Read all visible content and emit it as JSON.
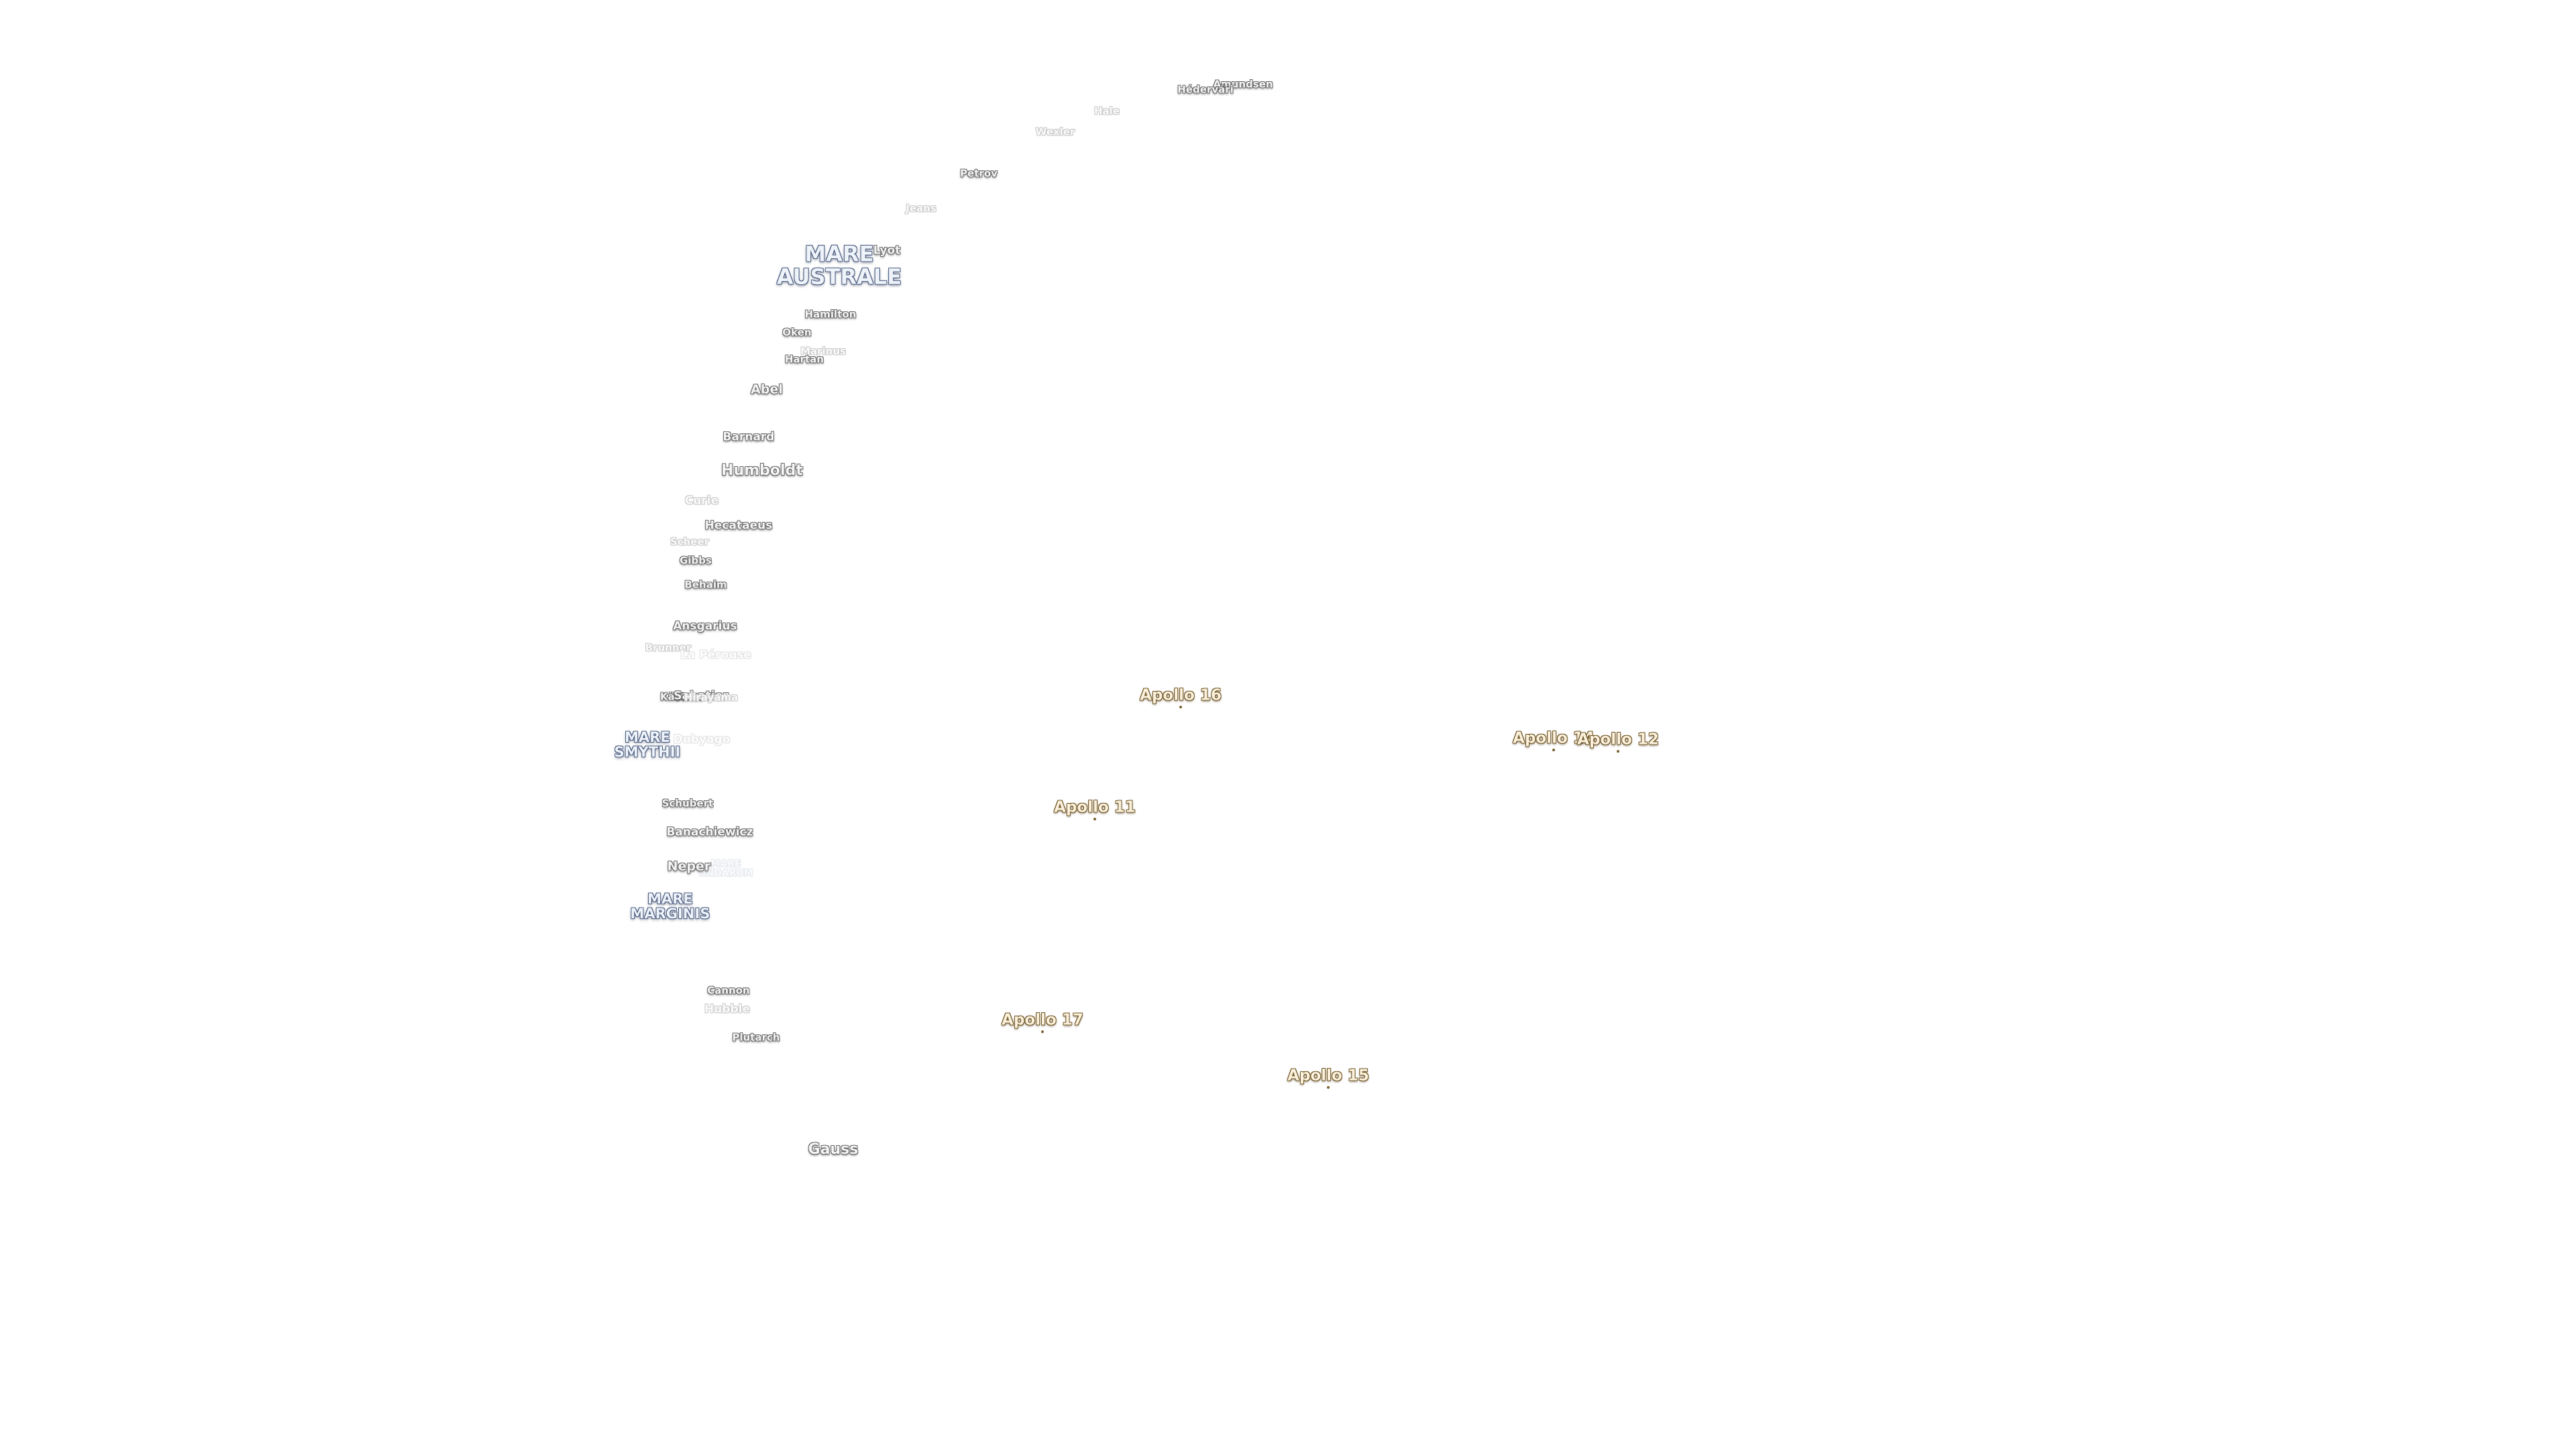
{
  "maria": [
    {
      "lines": [
        "MARE",
        "AUSTRALE"
      ]
    },
    {
      "lines": [
        "MARE",
        "SMYTHII"
      ]
    },
    {
      "lines": [
        "MARE",
        "MARGINIS"
      ]
    },
    {
      "lines": [
        "MARE",
        "UNDARUM"
      ]
    }
  ],
  "craters": [
    "Amundsen",
    "Hédervári",
    "Hale",
    "Wexler",
    "Petrov",
    "Jeans",
    "Lyot",
    "Hamilton",
    "Oken",
    "Marinus",
    "Hartan",
    "Abel",
    "Barnard",
    "Humboldt",
    "Curie",
    "Hecataeus",
    "Scheer",
    "Gibbs",
    "Behaim",
    "Ansgarius",
    "Brunner",
    "La Pérouse",
    "Kästner",
    "Sabatier",
    "Hirayama",
    "Dubyago",
    "Schubert",
    "Banachiewicz",
    "Neper",
    "Cannon",
    "Hubble",
    "Plutarch",
    "Gauss"
  ],
  "apollo_sites": [
    "Apollo 16",
    "Apollo 14",
    "Apollo 12",
    "Apollo 11",
    "Apollo 17",
    "Apollo 15"
  ]
}
